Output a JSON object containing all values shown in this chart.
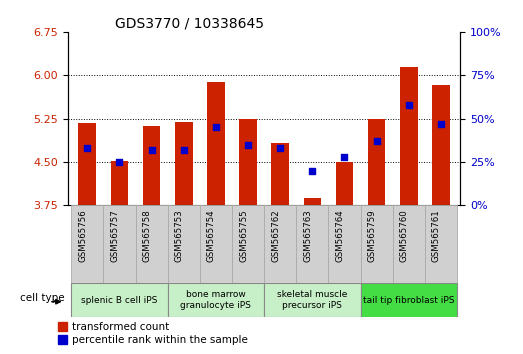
{
  "title": "GDS3770 / 10338645",
  "samples": [
    "GSM565756",
    "GSM565757",
    "GSM565758",
    "GSM565753",
    "GSM565754",
    "GSM565755",
    "GSM565762",
    "GSM565763",
    "GSM565764",
    "GSM565759",
    "GSM565760",
    "GSM565761"
  ],
  "transformed_counts": [
    5.18,
    4.51,
    5.12,
    5.19,
    5.88,
    5.25,
    4.83,
    3.88,
    4.5,
    5.25,
    6.15,
    5.83
  ],
  "percentile_ranks": [
    33,
    25,
    32,
    32,
    45,
    35,
    33,
    20,
    28,
    37,
    58,
    47
  ],
  "ylim_left": [
    3.75,
    6.75
  ],
  "ylim_right": [
    0,
    100
  ],
  "yticks_left": [
    3.75,
    4.5,
    5.25,
    6.0,
    6.75
  ],
  "yticks_right": [
    0,
    25,
    50,
    75,
    100
  ],
  "bar_color": "#cc2200",
  "dot_color": "#0000cc",
  "background_color": "#ffffff",
  "cell_type_groups": [
    {
      "label": "splenic B cell iPS",
      "indices": [
        0,
        1,
        2
      ],
      "color": "#c8f0c8"
    },
    {
      "label": "bone marrow\ngranulocyte iPS",
      "indices": [
        3,
        4,
        5
      ],
      "color": "#c8f0c8"
    },
    {
      "label": "skeletal muscle\nprecursor iPS",
      "indices": [
        6,
        7,
        8
      ],
      "color": "#c8f0c8"
    },
    {
      "label": "tail tip fibroblast iPS",
      "indices": [
        9,
        10,
        11
      ],
      "color": "#44dd44"
    }
  ],
  "sample_label_bg": "#d0d0d0",
  "legend_transformed": "transformed count",
  "legend_percentile": "percentile rank within the sample",
  "ylabel_left_color": "#cc2200",
  "ylabel_right_color": "#0000cc",
  "bar_bottom": 3.75,
  "dot_size": 20,
  "bar_width": 0.55
}
